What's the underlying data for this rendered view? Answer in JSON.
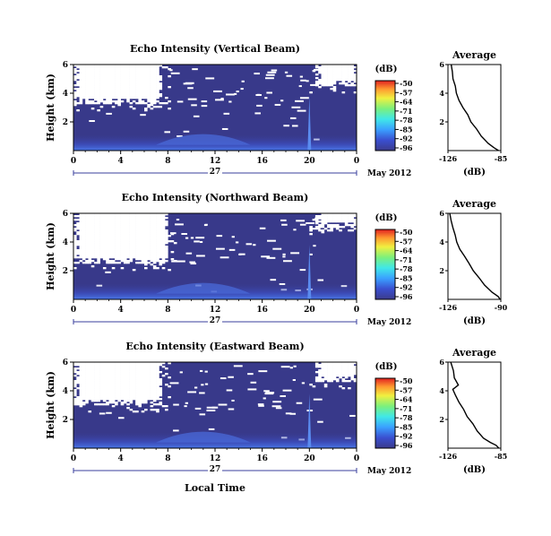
{
  "figure": {
    "date_label": "May 2012",
    "day_label": "27",
    "xlabel": "Local Time",
    "ylabel": "Height (km)"
  },
  "chart_data": [
    {
      "type": "heatmap",
      "title": "Echo Intensity (Vertical Beam)",
      "xlabel": "Local Time",
      "ylabel": "Height (km)",
      "xlim": [
        0,
        24
      ],
      "x_ticks": [
        "0",
        "4",
        "8",
        "12",
        "16",
        "20",
        "0"
      ],
      "ylim": [
        0,
        6
      ],
      "y_ticks": [
        "2",
        "4",
        "6"
      ],
      "colorbar": {
        "unit": "(dB)",
        "range": [
          -96,
          -50
        ],
        "ticks": [
          "-50",
          "-57",
          "-64",
          "-71",
          "-78",
          "-85",
          "-92",
          "-96"
        ]
      },
      "spike_time": 20,
      "white_regions": [
        {
          "t": [
            0,
            7.5
          ],
          "h": [
            3.2,
            6
          ]
        },
        {
          "t": [
            20.5,
            24
          ],
          "h": [
            4.5,
            6
          ]
        }
      ]
    },
    {
      "type": "line",
      "title": "Average",
      "xlabel": "(dB)",
      "xlim": [
        -126,
        -85
      ],
      "x_ticks": [
        "-126",
        "-85"
      ],
      "ylim": [
        0,
        6
      ],
      "y_ticks": [
        "2",
        "4",
        "6"
      ],
      "points": [
        [
          -124,
          6.0
        ],
        [
          -123,
          5.5
        ],
        [
          -122,
          5.0
        ],
        [
          -120,
          4.5
        ],
        [
          -119,
          4.0
        ],
        [
          -117,
          3.5
        ],
        [
          -114,
          3.0
        ],
        [
          -111,
          2.5
        ],
        [
          -108,
          2.0
        ],
        [
          -104,
          1.5
        ],
        [
          -100,
          1.0
        ],
        [
          -95,
          0.5
        ],
        [
          -90,
          0.2
        ],
        [
          -87,
          0.0
        ]
      ]
    },
    {
      "type": "heatmap",
      "title": "Echo Intensity (Northward Beam)",
      "xlabel": "Local Time",
      "ylabel": "Height (km)",
      "xlim": [
        0,
        24
      ],
      "x_ticks": [
        "0",
        "4",
        "8",
        "12",
        "16",
        "20",
        "0"
      ],
      "ylim": [
        0,
        6
      ],
      "y_ticks": [
        "2",
        "4",
        "6"
      ],
      "colorbar": {
        "unit": "(dB)",
        "range": [
          -96,
          -50
        ],
        "ticks": [
          "-50",
          "-57",
          "-64",
          "-71",
          "-78",
          "-85",
          "-92",
          "-96"
        ]
      },
      "spike_time": 20,
      "white_regions": [
        {
          "t": [
            0,
            8
          ],
          "h": [
            2.5,
            6
          ]
        },
        {
          "t": [
            20.5,
            24
          ],
          "h": [
            5.0,
            6
          ]
        }
      ]
    },
    {
      "type": "line",
      "title": "Average",
      "xlabel": "(dB)",
      "xlim": [
        -126,
        -90
      ],
      "x_ticks": [
        "-126",
        "-90"
      ],
      "ylim": [
        0,
        6
      ],
      "y_ticks": [
        "2",
        "4",
        "6"
      ],
      "points": [
        [
          -125,
          6.0
        ],
        [
          -124,
          5.5
        ],
        [
          -123,
          5.0
        ],
        [
          -121,
          4.5
        ],
        [
          -120,
          4.0
        ],
        [
          -118,
          3.5
        ],
        [
          -115,
          3.0
        ],
        [
          -112,
          2.5
        ],
        [
          -109,
          2.0
        ],
        [
          -105,
          1.5
        ],
        [
          -101,
          1.0
        ],
        [
          -96,
          0.5
        ],
        [
          -92,
          0.2
        ],
        [
          -90,
          0.0
        ]
      ]
    },
    {
      "type": "heatmap",
      "title": "Echo Intensity (Eastward Beam)",
      "xlabel": "Local Time",
      "ylabel": "Height (km)",
      "xlim": [
        0,
        24
      ],
      "x_ticks": [
        "0",
        "4",
        "8",
        "12",
        "16",
        "20",
        "0"
      ],
      "ylim": [
        0,
        6
      ],
      "y_ticks": [
        "2",
        "4",
        "6"
      ],
      "colorbar": {
        "unit": "(dB)",
        "range": [
          -96,
          -50
        ],
        "ticks": [
          "-50",
          "-57",
          "-64",
          "-71",
          "-78",
          "-85",
          "-92",
          "-96"
        ]
      },
      "spike_time": 20,
      "white_regions": [
        {
          "t": [
            0,
            7.5
          ],
          "h": [
            3.0,
            6
          ]
        },
        {
          "t": [
            20.5,
            24
          ],
          "h": [
            4.6,
            6
          ]
        }
      ]
    },
    {
      "type": "line",
      "title": "Average",
      "xlabel": "(dB)",
      "xlim": [
        -126,
        -85
      ],
      "x_ticks": [
        "-126",
        "-85"
      ],
      "ylim": [
        0,
        6
      ],
      "y_ticks": [
        "2",
        "4",
        "6"
      ],
      "points": [
        [
          -124,
          6.0
        ],
        [
          -122,
          5.4
        ],
        [
          -121,
          4.9
        ],
        [
          -118,
          4.4
        ],
        [
          -122,
          4.1
        ],
        [
          -120,
          3.7
        ],
        [
          -117,
          3.2
        ],
        [
          -114,
          2.7
        ],
        [
          -111,
          2.2
        ],
        [
          -107,
          1.7
        ],
        [
          -103,
          1.2
        ],
        [
          -98,
          0.7
        ],
        [
          -93,
          0.4
        ],
        [
          -89,
          0.2
        ],
        [
          -86,
          0.0
        ]
      ]
    }
  ]
}
